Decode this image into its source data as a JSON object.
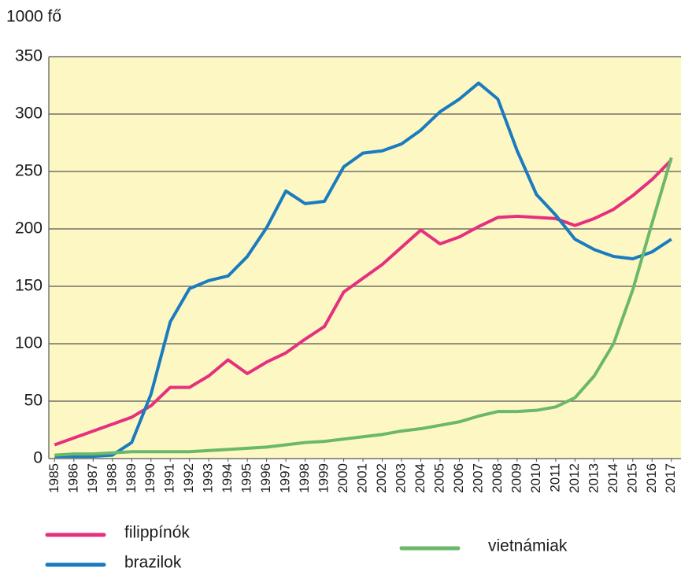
{
  "chart_data": {
    "type": "line",
    "y_axis_label": "1000 fő",
    "x": [
      1985,
      1986,
      1987,
      1988,
      1989,
      1990,
      1991,
      1992,
      1993,
      1994,
      1995,
      1996,
      1997,
      1998,
      1999,
      2000,
      2001,
      2002,
      2003,
      2004,
      2005,
      2006,
      2007,
      2008,
      2009,
      2010,
      2011,
      2012,
      2013,
      2014,
      2015,
      2016,
      2017
    ],
    "series": [
      {
        "name": "filippínók",
        "color": "#e5307e",
        "values": [
          12,
          18,
          24,
          30,
          36,
          46,
          62,
          62,
          72,
          86,
          74,
          84,
          92,
          104,
          115,
          145,
          157,
          169,
          184,
          199,
          187,
          193,
          202,
          210,
          211,
          210,
          209,
          203,
          209,
          217,
          229,
          243,
          260
        ]
      },
      {
        "name": "brazilok",
        "color": "#1a7cbf",
        "values": [
          2,
          2,
          2,
          3,
          14,
          56,
          119,
          148,
          155,
          159,
          176,
          201,
          233,
          222,
          224,
          254,
          266,
          268,
          274,
          286,
          302,
          313,
          327,
          313,
          268,
          230,
          212,
          191,
          182,
          176,
          174,
          180,
          191
        ]
      },
      {
        "name": "vietnámiak",
        "color": "#6cb86a",
        "values": [
          3,
          4,
          4,
          5,
          6,
          6,
          6,
          6,
          7,
          8,
          9,
          10,
          12,
          14,
          15,
          17,
          19,
          21,
          24,
          26,
          29,
          32,
          37,
          41,
          41,
          42,
          45,
          53,
          72,
          100,
          147,
          205,
          262
        ]
      }
    ],
    "xlim": [
      1984.7,
      2017.5
    ],
    "xticks": [
      1985,
      1986,
      1987,
      1988,
      1989,
      1990,
      1991,
      1992,
      1993,
      1994,
      1995,
      1996,
      1997,
      1998,
      1999,
      2000,
      2001,
      2002,
      2003,
      2004,
      2005,
      2006,
      2007,
      2008,
      2009,
      2010,
      2011,
      2012,
      2013,
      2014,
      2015,
      2016,
      2017
    ],
    "ylim": [
      0,
      350
    ],
    "yticks": [
      0,
      50,
      100,
      150,
      200,
      250,
      300,
      350
    ],
    "grid": true,
    "legend": "bottom",
    "background": "#fdf7c4"
  }
}
